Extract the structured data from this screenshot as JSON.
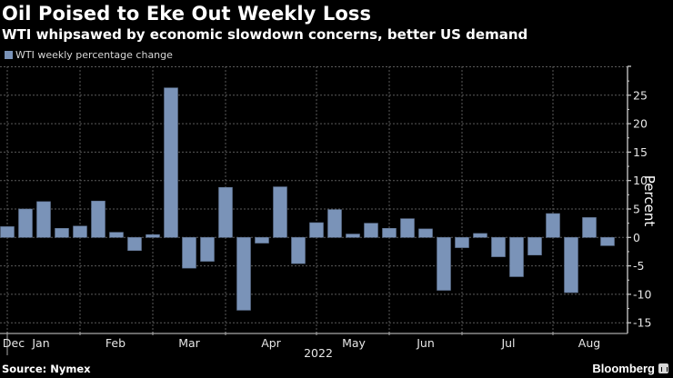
{
  "header": {
    "title": "Oil Poised to Eke Out Weekly Loss",
    "subtitle": "WTI whipsawed by economic slowdown concerns, better US demand"
  },
  "footer": {
    "source": "Source: Nymex",
    "brand": "Bloomberg",
    "brand_icon": "bloomberg-chart-icon"
  },
  "colors": {
    "background": "#000000",
    "bar": "#7a93b8",
    "grid": "#5a5a5a",
    "axis": "#cfcfcf",
    "text": "#ffffff"
  },
  "chart_data": {
    "type": "bar",
    "title": "Oil Poised to Eke Out Weekly Loss",
    "subtitle": "WTI whipsawed by economic slowdown concerns, better US demand",
    "xlabel": "2022",
    "ylabel": "Percent",
    "ylim": [
      -17,
      30
    ],
    "yticks": [
      25,
      20,
      15,
      10,
      5,
      0,
      -5,
      -10,
      -15
    ],
    "ytick_labels": [
      "25",
      "20",
      "15",
      "10",
      "5",
      "0",
      "-5",
      "-10",
      "-15"
    ],
    "y_axis_position": "right",
    "grid": true,
    "legend": {
      "position": "top-left",
      "entries": [
        "WTI weekly percentage change"
      ]
    },
    "x_month_labels": [
      "Dec",
      "Jan",
      "Feb",
      "Mar",
      "Apr",
      "May",
      "Jun",
      "Jul",
      "Aug"
    ],
    "x_month_boundaries_at_bar_index": [
      0,
      4,
      8,
      12,
      17,
      21,
      25,
      30
    ],
    "year_label": "2022",
    "series": [
      {
        "name": "WTI weekly percentage change",
        "values": [
          1.9,
          5.0,
          6.3,
          1.6,
          2.0,
          6.4,
          0.9,
          -2.3,
          0.5,
          26.3,
          -5.4,
          -4.2,
          8.8,
          -12.8,
          -1.0,
          8.9,
          -4.6,
          2.6,
          4.9,
          0.6,
          2.5,
          1.6,
          3.3,
          1.5,
          -9.3,
          -1.8,
          0.7,
          -3.4,
          -6.9,
          -3.1,
          4.2,
          -9.7,
          3.5,
          -1.45
        ]
      }
    ]
  }
}
